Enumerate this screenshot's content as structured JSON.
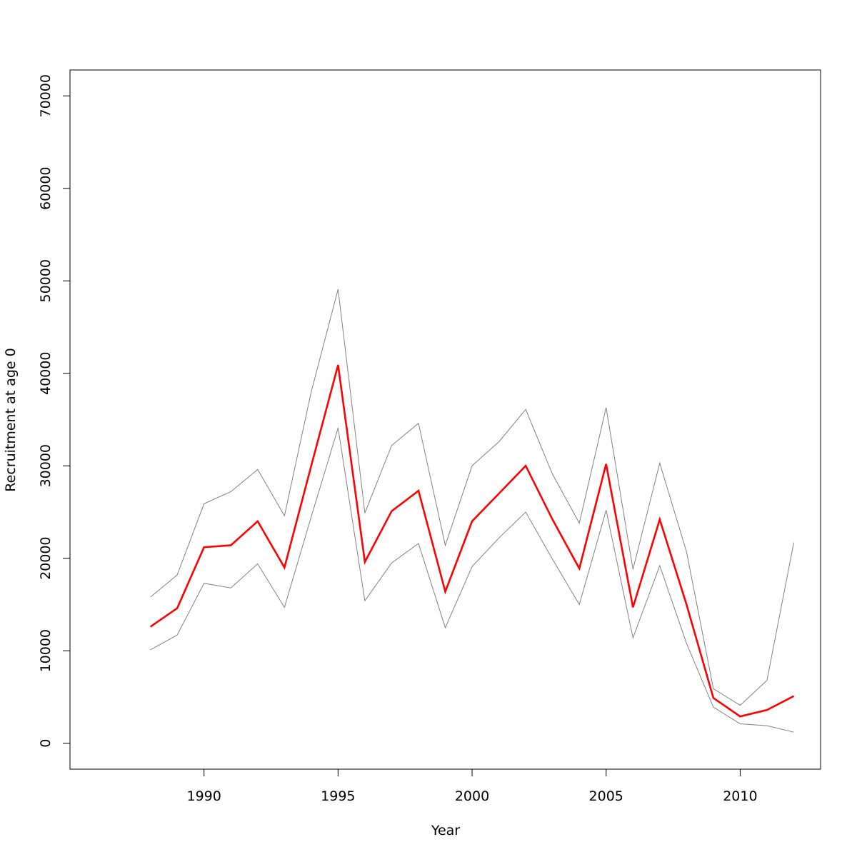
{
  "chart_data": {
    "type": "line",
    "title": "",
    "xlabel": "Year",
    "ylabel": "Recruitment at age 0",
    "xlim": [
      1985,
      2013
    ],
    "ylim": [
      -2800,
      72800
    ],
    "xticks": [
      1990,
      1995,
      2000,
      2005,
      2010
    ],
    "yticks": [
      0,
      10000,
      20000,
      30000,
      40000,
      50000,
      60000,
      70000
    ],
    "grid": false,
    "x": [
      1988,
      1989,
      1990,
      1991,
      1992,
      1993,
      1994,
      1995,
      1996,
      1997,
      1998,
      1999,
      2000,
      2001,
      2002,
      2003,
      2004,
      2005,
      2006,
      2007,
      2008,
      2009,
      2010,
      2011,
      2012
    ],
    "series": [
      {
        "color": "#ff0000",
        "role": "estimate",
        "values": [
          12600,
          14600,
          21200,
          21400,
          24000,
          19000,
          30000,
          40900,
          19600,
          25100,
          27300,
          16400,
          24000,
          27000,
          30000,
          24200,
          18900,
          30200,
          14700,
          24200,
          15000,
          4900,
          2900,
          3600,
          5100
        ]
      },
      {
        "color": "#808080",
        "role": "upper",
        "values": [
          15800,
          18200,
          25900,
          27200,
          29600,
          24600,
          38000,
          49100,
          24900,
          32200,
          34600,
          21400,
          30000,
          32600,
          36100,
          29100,
          23800,
          36300,
          18800,
          30300,
          20700,
          5900,
          4100,
          6800,
          21700
        ]
      },
      {
        "color": "#808080",
        "role": "lower",
        "values": [
          10100,
          11700,
          17300,
          16800,
          19400,
          14700,
          24500,
          34100,
          15400,
          19500,
          21600,
          12500,
          19100,
          22200,
          25000,
          19900,
          15000,
          25200,
          11400,
          19200,
          10800,
          3900,
          2100,
          1900,
          1200
        ]
      }
    ]
  }
}
